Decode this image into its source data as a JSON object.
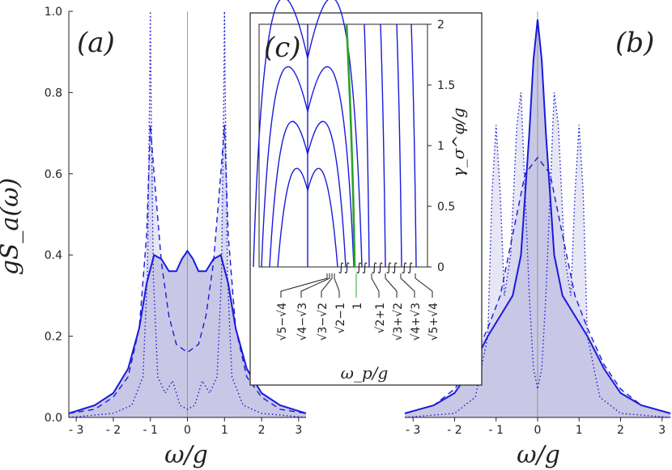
{
  "colors": {
    "blue": "#1a1adb",
    "fill": "#c8c8e6",
    "fill2": "#9a9ad2",
    "green": "#2ea02e",
    "axis": "#222222"
  },
  "chart_data": [
    {
      "panel": "(a)",
      "type": "area",
      "ylabel": "gS_a(ω)",
      "xlabel": "ω/g",
      "xlim": [
        -3.2,
        3.2
      ],
      "ylim": [
        0,
        1.0
      ],
      "xticks": [
        "-3",
        "-2",
        "-1",
        "0",
        "1",
        "2",
        "3"
      ],
      "yticks": [
        "0.0",
        "0.2",
        "0.4",
        "0.6",
        "0.8",
        "1.0"
      ],
      "series": [
        {
          "style": "solid",
          "x": [
            -3.2,
            -2.5,
            -2,
            -1.6,
            -1.3,
            -1.1,
            -0.9,
            -0.7,
            -0.5,
            -0.3,
            -0.15,
            0,
            0.15,
            0.3,
            0.5,
            0.7,
            0.9,
            1.1,
            1.3,
            1.6,
            2,
            2.5,
            3.2
          ],
          "y": [
            0.01,
            0.03,
            0.06,
            0.12,
            0.22,
            0.33,
            0.4,
            0.39,
            0.36,
            0.36,
            0.39,
            0.41,
            0.39,
            0.36,
            0.36,
            0.39,
            0.4,
            0.33,
            0.22,
            0.12,
            0.06,
            0.03,
            0.01
          ]
        },
        {
          "style": "dashed",
          "x": [
            -3.2,
            -2.5,
            -2,
            -1.6,
            -1.3,
            -1.1,
            -1.0,
            -0.9,
            -0.7,
            -0.5,
            -0.3,
            0,
            0.3,
            0.5,
            0.7,
            0.9,
            1.0,
            1.1,
            1.3,
            1.6,
            2,
            2.5,
            3.2
          ],
          "y": [
            0.01,
            0.02,
            0.05,
            0.1,
            0.22,
            0.45,
            0.72,
            0.6,
            0.38,
            0.25,
            0.18,
            0.16,
            0.18,
            0.25,
            0.38,
            0.6,
            0.72,
            0.45,
            0.22,
            0.1,
            0.05,
            0.02,
            0.01
          ]
        },
        {
          "style": "dotted",
          "x": [
            -3.2,
            -2,
            -1.5,
            -1.2,
            -1.08,
            -1.02,
            -1.0,
            -0.98,
            -0.92,
            -0.8,
            -0.6,
            -0.4,
            -0.2,
            0,
            0.2,
            0.4,
            0.6,
            0.8,
            0.92,
            0.98,
            1.0,
            1.02,
            1.08,
            1.2,
            1.5,
            2,
            3.2
          ],
          "y": [
            0,
            0.01,
            0.03,
            0.1,
            0.35,
            0.8,
            1.0,
            0.8,
            0.35,
            0.1,
            0.06,
            0.09,
            0.03,
            0.02,
            0.03,
            0.09,
            0.06,
            0.1,
            0.35,
            0.8,
            1.0,
            0.8,
            0.35,
            0.1,
            0.03,
            0.01,
            0
          ]
        }
      ]
    },
    {
      "panel": "(b)",
      "type": "area",
      "xlabel": "ω/g",
      "xlim": [
        -3.2,
        3.2
      ],
      "ylim": [
        0,
        1.0
      ],
      "xticks": [
        "-3",
        "-2",
        "-1",
        "0",
        "1",
        "2",
        "3"
      ],
      "series": [
        {
          "style": "solid",
          "x": [
            -3.2,
            -2.5,
            -2,
            -1.6,
            -1.2,
            -0.9,
            -0.6,
            -0.4,
            -0.2,
            -0.1,
            0,
            0.1,
            0.2,
            0.4,
            0.6,
            0.9,
            1.2,
            1.6,
            2,
            2.5,
            3.2
          ],
          "y": [
            0.01,
            0.03,
            0.06,
            0.12,
            0.2,
            0.25,
            0.3,
            0.4,
            0.7,
            0.88,
            0.98,
            0.88,
            0.7,
            0.4,
            0.3,
            0.25,
            0.2,
            0.12,
            0.06,
            0.03,
            0.01
          ]
        },
        {
          "style": "dashed",
          "x": [
            -3.2,
            -2.5,
            -2,
            -1.6,
            -1.2,
            -0.9,
            -0.6,
            -0.3,
            0,
            0.3,
            0.6,
            0.9,
            1.2,
            1.6,
            2,
            2.5,
            3.2
          ],
          "y": [
            0.01,
            0.03,
            0.07,
            0.13,
            0.22,
            0.3,
            0.45,
            0.6,
            0.64,
            0.6,
            0.45,
            0.3,
            0.22,
            0.13,
            0.07,
            0.03,
            0.01
          ]
        },
        {
          "style": "dotted",
          "x": [
            -3.2,
            -2,
            -1.5,
            -1.2,
            -1.1,
            -1.0,
            -0.9,
            -0.8,
            -0.65,
            -0.5,
            -0.4,
            -0.3,
            -0.2,
            -0.1,
            0,
            0.1,
            0.2,
            0.3,
            0.4,
            0.5,
            0.65,
            0.8,
            0.9,
            1.0,
            1.1,
            1.2,
            1.5,
            2,
            3.2
          ],
          "y": [
            0,
            0.01,
            0.05,
            0.2,
            0.55,
            0.72,
            0.55,
            0.3,
            0.4,
            0.72,
            0.8,
            0.55,
            0.3,
            0.12,
            0.07,
            0.12,
            0.3,
            0.55,
            0.8,
            0.72,
            0.4,
            0.3,
            0.55,
            0.72,
            0.55,
            0.2,
            0.05,
            0.01,
            0
          ]
        }
      ]
    },
    {
      "panel": "(c)",
      "type": "line",
      "xlabel": "ω_p/g",
      "ylabel": "γ_σ^φ/g",
      "ylim": [
        0,
        2
      ],
      "yticks": [
        "0",
        "0.5",
        "1",
        "1.5",
        "2"
      ],
      "x_tick_labels": [
        "√5−√4",
        "√4−√3",
        "√3−√2",
        "√2−1",
        "1",
        "√2+1",
        "√3+√2",
        "√4+√3",
        "√5+√4"
      ],
      "x_tick_values": [
        0.236,
        0.268,
        0.318,
        0.414,
        1.0,
        2.414,
        3.146,
        3.732,
        4.236
      ],
      "arc_peaks": [
        0.63,
        0.93,
        1.28,
        1.72
      ],
      "center_line_label": "1"
    }
  ]
}
